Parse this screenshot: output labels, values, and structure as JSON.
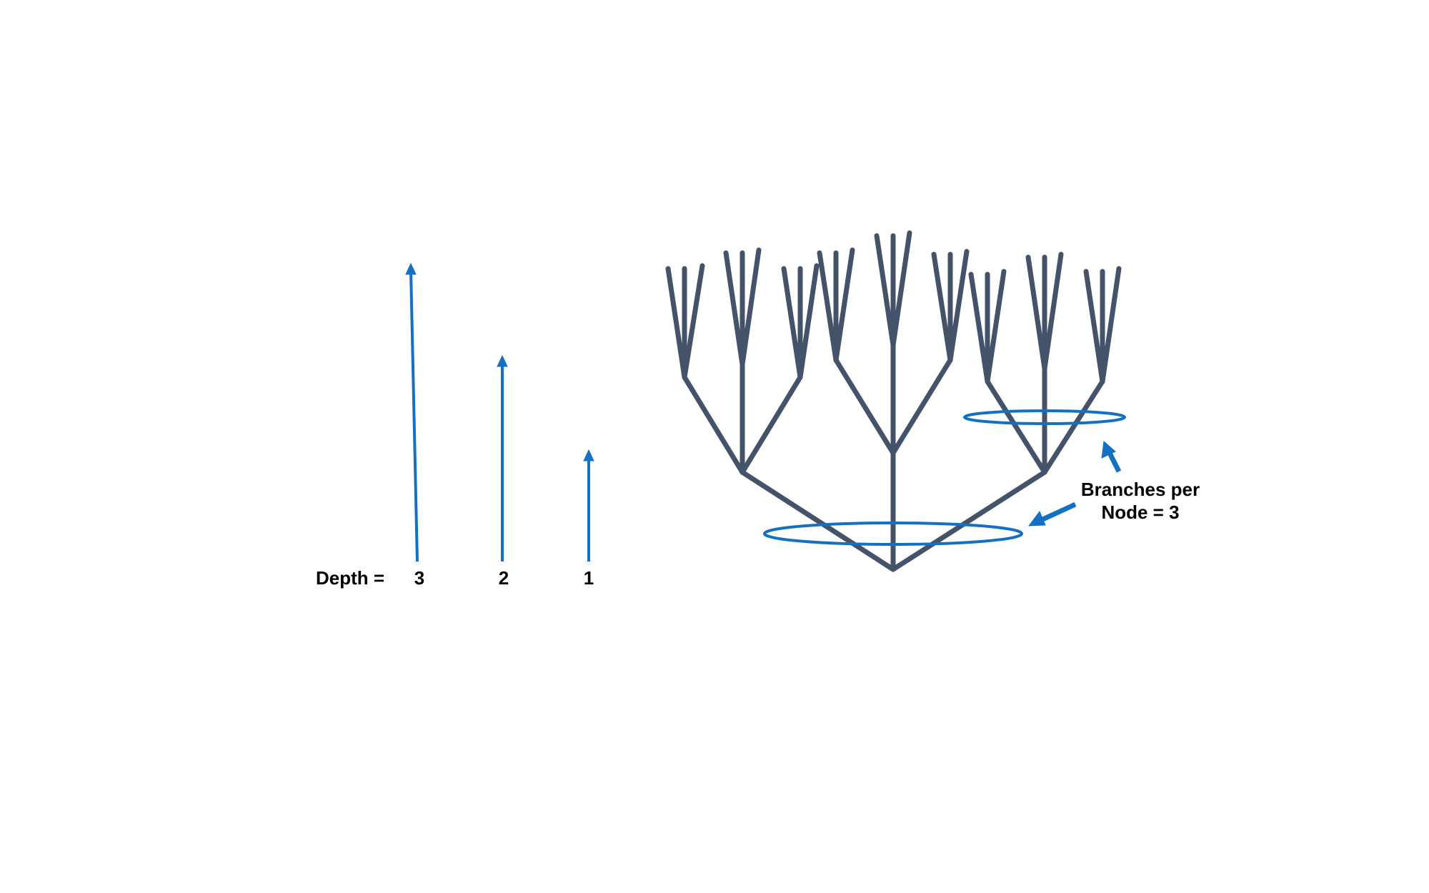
{
  "depth_scale": {
    "prefix": "Depth =",
    "values": [
      "3",
      "2",
      "1"
    ]
  },
  "callout": {
    "line1": "Branches per",
    "line2": "Node = 3"
  },
  "colors": {
    "tree": "#44536a",
    "accent": "#1470c0",
    "text": "#000000"
  }
}
